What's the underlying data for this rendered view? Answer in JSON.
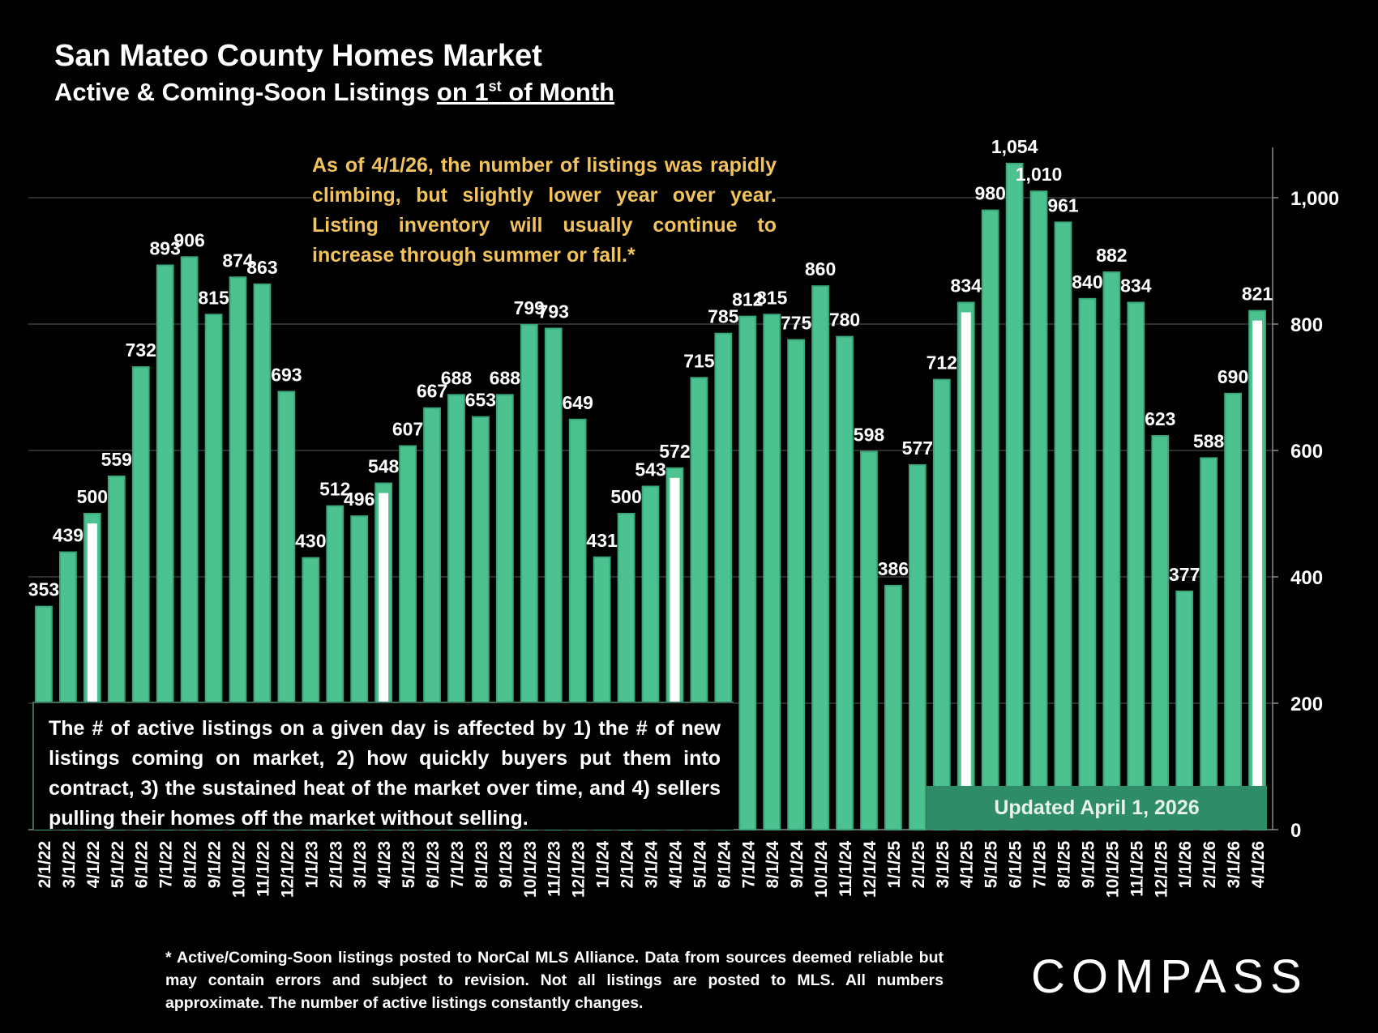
{
  "title": "San Mateo County Homes Market",
  "subtitle_part1": "Active & Coming-Soon Listings ",
  "subtitle_part2a": "on 1",
  "subtitle_sup": "st",
  "subtitle_part2b": " of Month",
  "note_top": "As of 4/1/26, the number of listings was rapidly climbing, but slightly lower year over year. Listing inventory will usually continue to increase through summer or fall.*",
  "note_box": "The # of active listings on a given day is affected by 1) the # of new listings coming on market, 2) how quickly buyers put them into contract, 3) the sustained heat of the market over time, and 4) sellers pulling their homes off the market without selling.",
  "updated_label": "Updated April 1, 2026",
  "footnote": "* Active/Coming-Soon listings posted to NorCal MLS Alliance.  Data from sources deemed reliable but may contain errors and subject to revision.  Not all listings are posted to MLS. All numbers approximate. The number of active listings constantly changes.",
  "logo": "COMPASS",
  "colors": {
    "bar": "#4cc290",
    "bar_edge": "#3aa87a",
    "highlight": "#ffffff",
    "updated_bg": "#2f8c69",
    "note_top": "#f2c25c"
  },
  "chart_data": {
    "type": "bar",
    "categories": [
      "2/1/22",
      "3/1/22",
      "4/1/22",
      "5/1/22",
      "6/1/22",
      "7/1/22",
      "8/1/22",
      "9/1/22",
      "10/1/22",
      "11/1/22",
      "12/1/22",
      "1/1/23",
      "2/1/23",
      "3/1/23",
      "4/1/23",
      "5/1/23",
      "6/1/23",
      "7/1/23",
      "8/1/23",
      "9/1/23",
      "10/1/23",
      "11/1/23",
      "12/1/23",
      "1/1/24",
      "2/1/24",
      "3/1/24",
      "4/1/24",
      "5/1/24",
      "6/1/24",
      "7/1/24",
      "8/1/24",
      "9/1/24",
      "10/1/24",
      "11/1/24",
      "12/1/24",
      "1/1/25",
      "2/1/25",
      "3/1/25",
      "4/1/25",
      "5/1/25",
      "6/1/25",
      "7/1/25",
      "8/1/25",
      "9/1/25",
      "10/1/25",
      "11/1/25",
      "12/1/25",
      "1/1/26",
      "2/1/26",
      "3/1/26",
      "4/1/26"
    ],
    "values": [
      353,
      439,
      500,
      559,
      732,
      893,
      906,
      815,
      874,
      863,
      693,
      430,
      512,
      496,
      548,
      607,
      667,
      688,
      653,
      688,
      799,
      793,
      649,
      431,
      500,
      543,
      572,
      715,
      785,
      812,
      815,
      775,
      860,
      780,
      598,
      386,
      577,
      712,
      834,
      980,
      1054,
      1010,
      961,
      840,
      882,
      834,
      623,
      377,
      588,
      690,
      821
    ],
    "value_labels": [
      "353",
      "439",
      "500",
      "559",
      "732",
      "893",
      "906",
      "815",
      "874",
      "863",
      "693",
      "430",
      "512",
      "496",
      "548",
      "607",
      "667",
      "688",
      "653",
      "688",
      "799",
      "793",
      "649",
      "431",
      "500",
      "543",
      "572",
      "715",
      "785",
      "812",
      "815",
      "775",
      "860",
      "780",
      "598",
      "386",
      "577",
      "712",
      "834",
      "980",
      "1,054",
      "1,010",
      "961",
      "840",
      "882",
      "834",
      "623",
      "377",
      "588",
      "690",
      "821"
    ],
    "highlighted_categories": [
      "4/1/22",
      "4/1/23",
      "4/1/24",
      "4/1/25",
      "4/1/26"
    ],
    "y_axis_position": "right",
    "y_ticks": [
      0,
      200,
      400,
      600,
      800,
      1000
    ],
    "y_tick_labels": [
      "0",
      "200",
      "400",
      "600",
      "800",
      "1,000"
    ],
    "ylim": [
      0,
      1080
    ],
    "grid": true
  }
}
